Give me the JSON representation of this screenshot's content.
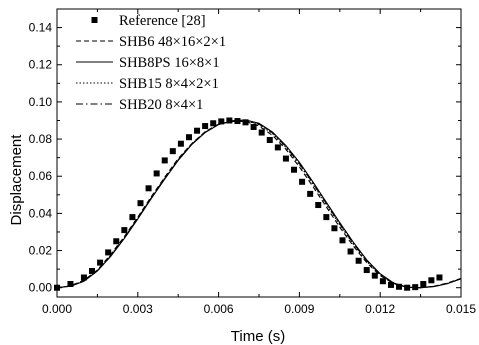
{
  "chart_data": {
    "type": "line",
    "xlabel": "Time (s)",
    "ylabel": "Displacement",
    "xlim": [
      0.0,
      0.015
    ],
    "ylim": [
      -0.005,
      0.15
    ],
    "x_ticks": [
      "0.000",
      "0.003",
      "0.006",
      "0.009",
      "0.012",
      "0.015"
    ],
    "y_ticks": [
      "0.00",
      "0.02",
      "0.04",
      "0.06",
      "0.08",
      "0.10",
      "0.12",
      "0.14"
    ],
    "grid": false,
    "legend_position": "top-left",
    "series": [
      {
        "name": "Reference [28]",
        "style": "markers",
        "marker": "filled-square",
        "x": [
          0.0,
          0.0005,
          0.001,
          0.0013,
          0.0016,
          0.0019,
          0.0022,
          0.0025,
          0.0028,
          0.0031,
          0.0034,
          0.0037,
          0.004,
          0.0043,
          0.0046,
          0.0049,
          0.0052,
          0.0055,
          0.0058,
          0.0061,
          0.0064,
          0.0067,
          0.007,
          0.0073,
          0.0076,
          0.0079,
          0.0082,
          0.0085,
          0.0088,
          0.0091,
          0.0094,
          0.0097,
          0.01,
          0.0103,
          0.0106,
          0.0109,
          0.0112,
          0.0115,
          0.0118,
          0.0121,
          0.0124,
          0.0127,
          0.013,
          0.0133,
          0.0136,
          0.0139,
          0.0142
        ],
        "y": [
          0.0,
          0.002,
          0.0055,
          0.009,
          0.0135,
          0.019,
          0.025,
          0.031,
          0.038,
          0.0455,
          0.0535,
          0.0615,
          0.0685,
          0.0735,
          0.0775,
          0.081,
          0.0845,
          0.087,
          0.0885,
          0.0895,
          0.09,
          0.0897,
          0.089,
          0.0865,
          0.0835,
          0.0795,
          0.0755,
          0.0695,
          0.0635,
          0.057,
          0.0505,
          0.0445,
          0.038,
          0.032,
          0.0255,
          0.0195,
          0.0145,
          0.0095,
          0.0065,
          0.0035,
          0.0015,
          0.0005,
          0.0,
          0.0003,
          0.002,
          0.004,
          0.0055
        ]
      },
      {
        "name": "SHB6 48×16×2×1",
        "style": "dashed",
        "x": [
          0.0,
          0.0005,
          0.001,
          0.0015,
          0.002,
          0.0025,
          0.003,
          0.0035,
          0.004,
          0.0045,
          0.005,
          0.0055,
          0.006,
          0.0065,
          0.007,
          0.0075,
          0.008,
          0.0085,
          0.009,
          0.0095,
          0.01,
          0.0105,
          0.011,
          0.0115,
          0.012,
          0.0125,
          0.013,
          0.0135,
          0.014,
          0.0145,
          0.015
        ],
        "y": [
          0.0,
          0.001,
          0.004,
          0.0095,
          0.018,
          0.0275,
          0.038,
          0.049,
          0.0595,
          0.0695,
          0.0775,
          0.084,
          0.088,
          0.0895,
          0.0895,
          0.087,
          0.082,
          0.0745,
          0.065,
          0.0545,
          0.0435,
          0.0325,
          0.0225,
          0.0135,
          0.0065,
          0.0022,
          0.0002,
          0.0,
          0.0008,
          0.0025,
          0.005
        ]
      },
      {
        "name": "SHB8PS 16×8×1",
        "style": "solid",
        "x": [
          0.0,
          0.0005,
          0.001,
          0.0015,
          0.002,
          0.0025,
          0.003,
          0.0035,
          0.004,
          0.0045,
          0.005,
          0.0055,
          0.006,
          0.0065,
          0.007,
          0.0075,
          0.008,
          0.0085,
          0.009,
          0.0095,
          0.01,
          0.0105,
          0.011,
          0.0115,
          0.012,
          0.0125,
          0.013,
          0.0135,
          0.014,
          0.0145,
          0.015
        ],
        "y": [
          0.0,
          0.0008,
          0.0035,
          0.009,
          0.017,
          0.0265,
          0.037,
          0.048,
          0.0585,
          0.0685,
          0.077,
          0.0835,
          0.0878,
          0.0898,
          0.0903,
          0.0885,
          0.0838,
          0.0765,
          0.0675,
          0.057,
          0.046,
          0.035,
          0.0245,
          0.015,
          0.0075,
          0.0025,
          0.0003,
          0.0,
          0.0006,
          0.0022,
          0.0048
        ]
      },
      {
        "name": "SHB15 8×4×2×1",
        "style": "dotted",
        "x": [
          0.0,
          0.0005,
          0.001,
          0.0015,
          0.002,
          0.0025,
          0.003,
          0.0035,
          0.004,
          0.0045,
          0.005,
          0.0055,
          0.006,
          0.0065,
          0.007,
          0.0075,
          0.008,
          0.0085,
          0.009,
          0.0095,
          0.01,
          0.0105,
          0.011,
          0.0115,
          0.012,
          0.0125,
          0.013,
          0.0135,
          0.014,
          0.0145,
          0.015
        ],
        "y": [
          0.0,
          0.0009,
          0.0038,
          0.0092,
          0.0175,
          0.027,
          0.0375,
          0.0485,
          0.059,
          0.069,
          0.0773,
          0.0838,
          0.088,
          0.0898,
          0.0899,
          0.0878,
          0.083,
          0.0755,
          0.0662,
          0.0558,
          0.0448,
          0.0338,
          0.0235,
          0.0142,
          0.007,
          0.0023,
          0.0002,
          0.0,
          0.0007,
          0.0023,
          0.0049
        ]
      },
      {
        "name": "SHB20 8×4×1",
        "style": "dash-dot",
        "x": [
          0.0,
          0.0005,
          0.001,
          0.0015,
          0.002,
          0.0025,
          0.003,
          0.0035,
          0.004,
          0.0045,
          0.005,
          0.0055,
          0.006,
          0.0065,
          0.007,
          0.0075,
          0.008,
          0.0085,
          0.009,
          0.0095,
          0.01,
          0.0105,
          0.011,
          0.0115,
          0.012,
          0.0125,
          0.013,
          0.0135,
          0.014,
          0.0145,
          0.015
        ],
        "y": [
          0.0,
          0.0008,
          0.0036,
          0.0091,
          0.0172,
          0.0268,
          0.0373,
          0.0483,
          0.0588,
          0.0688,
          0.0772,
          0.0837,
          0.0879,
          0.0898,
          0.09,
          0.088,
          0.0833,
          0.0759,
          0.0667,
          0.0563,
          0.0453,
          0.0343,
          0.0239,
          0.0145,
          0.0072,
          0.0024,
          0.0002,
          0.0,
          0.0007,
          0.0023,
          0.0049
        ]
      }
    ]
  }
}
